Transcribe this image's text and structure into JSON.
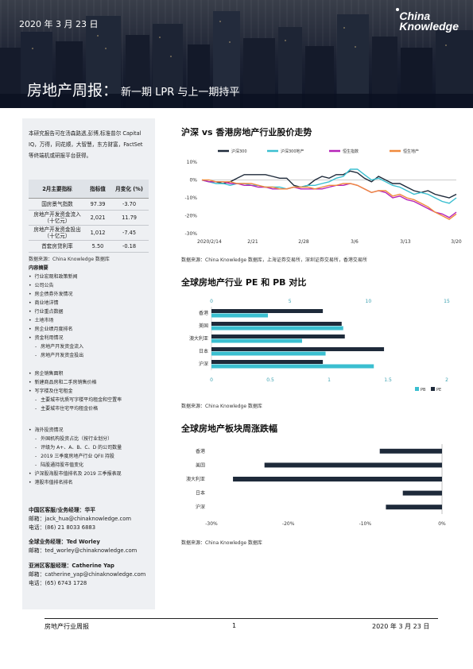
{
  "header": {
    "date": "2020 年 3 月 23 日",
    "brand_line1": "China",
    "brand_line2": "Knowledge",
    "title_main": "房地产周报：",
    "title_sub": "新一期 LPR 与上一期持平"
  },
  "sidebar": {
    "intro": "本研究报告可在汤森路透,彭博,标准普尔 Capital IQ，万得，同花顺，大智慧，东方财富，FactSet 等终端机或研报平台获得。",
    "table": {
      "headers": [
        "2月主要指标",
        "指标值",
        "月变化 (%)"
      ],
      "rows": [
        [
          "国房景气指数",
          "97.39",
          "-3.70"
        ],
        [
          "房地产开发资金流入（十亿元）",
          "2,021",
          "11.79"
        ],
        [
          "房地产开发资金投出（十亿元）",
          "1,012",
          "-7.45"
        ],
        [
          "首套房贷利率",
          "5.50",
          "-0.18"
        ]
      ]
    },
    "source": "数据来源：China Knowledge 数据库",
    "toc_title": "内容摘要",
    "toc_group1": [
      {
        "t": "b",
        "text": "行业宏观和政策新闻"
      },
      {
        "t": "b",
        "text": "公司公告"
      },
      {
        "t": "b",
        "text": "房企债券外发情况"
      },
      {
        "t": "b",
        "text": "商业地详情"
      },
      {
        "t": "b",
        "text": "行业重点数据"
      },
      {
        "t": "b",
        "text": "土地市场"
      },
      {
        "t": "b",
        "text": "房企业绩月度排名"
      },
      {
        "t": "b",
        "text": "资金利用情况"
      },
      {
        "t": "d",
        "text": "房地产开发资金流入"
      },
      {
        "t": "d",
        "text": "房地产开发资金投出"
      }
    ],
    "toc_group2": [
      {
        "t": "b",
        "text": "房企销售面积"
      },
      {
        "t": "b",
        "text": "新建商品房和二手房销售价格"
      },
      {
        "t": "b",
        "text": "写字楼及住宅租金"
      },
      {
        "t": "d",
        "text": "主要城市优质写字楼平均租金和空置率"
      },
      {
        "t": "d",
        "text": "主要城市住宅平均租金价格"
      }
    ],
    "toc_group3": [
      {
        "t": "b",
        "text": "海外投资情况"
      },
      {
        "t": "d",
        "text": "外国机构投资占比（按行业划分）"
      },
      {
        "t": "d",
        "text": "评级为 A+、A、B、C、D 的公司数量"
      },
      {
        "t": "d",
        "text": "2019 三季度房地产行业 QFII 持股"
      },
      {
        "t": "d",
        "text": "陆股通持股市值变化"
      },
      {
        "t": "b",
        "text": "沪深股海股市值排名及 2019 三季报表现"
      },
      {
        "t": "b",
        "text": "港股市值排名排名"
      }
    ],
    "contacts": [
      {
        "head": "中国区客服/业务经理：华平",
        "lines": [
          "邮箱：jack_hua@chinaknowledge.com",
          "电话：(86) 21 8033 6883"
        ]
      },
      {
        "head": "全球业务经理：Ted Worley",
        "lines": [
          "邮箱：ted_worley@chinaknowledge.com"
        ]
      },
      {
        "head": "亚洲区客服经理：Catherine Yap",
        "lines": [
          "邮箱：catherine_yap@chinaknowledge.com",
          "电话：(65) 6743 1728"
        ]
      }
    ]
  },
  "sections": {
    "s1_title": "沪深 vs 香港房地产行业股价走势",
    "s1_source": "数据来源：China Knowledge 数据库，上海证券交易所，深圳证券交易所，香港交易所",
    "s2_title": "全球房地产行业 PE 和 PB 对比",
    "s2_source": "数据来源：China Knowledge 数据库",
    "s3_title": "全球房地产板块周涨跌幅",
    "s3_source": "数据来源：China Knowledge 数据库"
  },
  "colors": {
    "dark": "#1e2a3a",
    "teal": "#3bbfd0",
    "magenta": "#b623b8",
    "orange": "#f08a3c"
  },
  "chart_data": [
    {
      "type": "line",
      "title": "沪深 vs 香港房地产行业股价走势",
      "series_names": [
        "沪深300",
        "沪深300地产",
        "恒生指数",
        "恒生地产"
      ],
      "x_ticks": [
        "2020/2/14",
        "2/21",
        "2/28",
        "3/6",
        "3/13",
        "3/20"
      ],
      "ylim": [
        -30,
        10
      ],
      "y_ticks": [
        "10%",
        "0%",
        "-10%",
        "-20%",
        "-30%"
      ],
      "series": [
        {
          "name": "沪深300",
          "color": "#1e2a3a",
          "values": [
            0,
            -1,
            -1,
            -2,
            -1,
            1,
            3,
            3,
            3,
            3,
            2,
            1,
            1,
            -3,
            -4,
            -3,
            0,
            2,
            1,
            3,
            3,
            5,
            4,
            1,
            -1,
            2,
            0,
            -2,
            -2,
            -4,
            -6,
            -7,
            -6,
            -8,
            -9,
            -10,
            -8
          ]
        },
        {
          "name": "沪深300地产",
          "color": "#3bbfd0",
          "values": [
            0,
            -1,
            -2,
            -2,
            -3,
            -2,
            -2,
            -3,
            -3,
            -4,
            -4,
            -4,
            -5,
            -4,
            -4,
            -3,
            -3,
            -2,
            -1,
            1,
            2,
            6,
            6,
            3,
            0,
            1,
            -1,
            -3,
            -4,
            -6,
            -8,
            -7,
            -8,
            -10,
            -12,
            -13,
            -10
          ]
        },
        {
          "name": "恒生指数",
          "color": "#b623b8",
          "values": [
            0,
            -1,
            -1,
            -1,
            -2,
            -2,
            -3,
            -3,
            -4,
            -4,
            -5,
            -5,
            -5,
            -4,
            -5,
            -5,
            -5,
            -5,
            -4,
            -3,
            -3,
            -2,
            -3,
            -5,
            -7,
            -6,
            -7,
            -10,
            -9,
            -11,
            -12,
            -14,
            -16,
            -18,
            -19,
            -21,
            -18
          ]
        },
        {
          "name": "恒生地产",
          "color": "#f08a3c",
          "values": [
            0,
            0,
            -1,
            -1,
            -1,
            -2,
            -2,
            -2,
            -3,
            -4,
            -4,
            -5,
            -5,
            -4,
            -4,
            -4,
            -5,
            -4,
            -3,
            -3,
            -2,
            -2,
            -3,
            -5,
            -7,
            -6,
            -6,
            -9,
            -8,
            -10,
            -11,
            -13,
            -15,
            -18,
            -20,
            -22,
            -19
          ]
        }
      ]
    },
    {
      "type": "bar",
      "title": "全球房地产行业 PE 和 PB 对比",
      "categories": [
        "香港",
        "美国",
        "澳大利亚",
        "日本",
        "沪深"
      ],
      "pe_axis": [
        0,
        15
      ],
      "pe_ticks": [
        "0",
        "5",
        "10",
        "15"
      ],
      "pb_axis": [
        0,
        2
      ],
      "pb_ticks": [
        "0",
        "0.5",
        "1",
        "1.5",
        "2"
      ],
      "series": [
        {
          "name": "PE",
          "color": "#1e2a3a",
          "axis": "pe",
          "values": [
            7.1,
            8.3,
            8.5,
            11.0,
            7.1
          ]
        },
        {
          "name": "PB",
          "color": "#3bbfd0",
          "axis": "pb",
          "values": [
            0.48,
            1.12,
            0.77,
            0.97,
            1.38
          ]
        }
      ],
      "legend": [
        "PB",
        "PE"
      ]
    },
    {
      "type": "bar",
      "title": "全球房地产板块周涨跌幅",
      "categories": [
        "香港",
        "美国",
        "澳大利亚",
        "日本",
        "沪深"
      ],
      "xlim": [
        -30,
        0
      ],
      "x_ticks": [
        "-30%",
        "-20%",
        "-10%",
        "0%"
      ],
      "values": [
        -8.1,
        -23.1,
        -27.2,
        -5.1,
        -7.3
      ]
    }
  ],
  "footer": {
    "left": "房地产行业周报",
    "page": "1",
    "right": "2020 年 3 月 23 日"
  }
}
